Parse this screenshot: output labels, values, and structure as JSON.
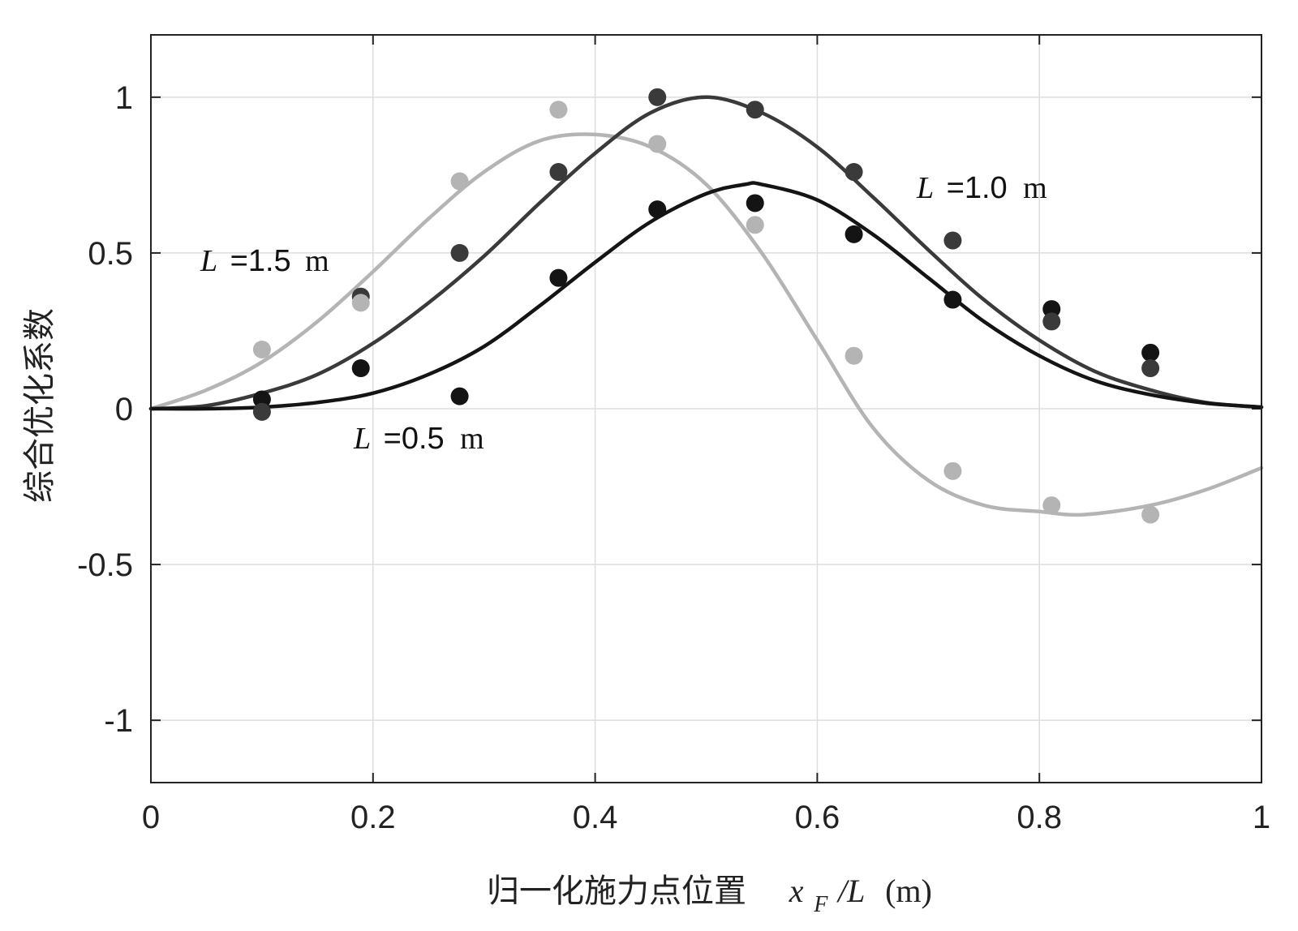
{
  "chart_data": {
    "type": "line",
    "xlabel": "归一化施力点位置",
    "xlabel_math": {
      "x": "x",
      "sub": "F",
      "rest": "/L",
      "unit": "(m)"
    },
    "ylabel": "综合优化系数",
    "xlim": [
      0,
      1
    ],
    "ylim": [
      -1.2,
      1.2
    ],
    "xticks": [
      0,
      0.2,
      0.4,
      0.6,
      0.8,
      1
    ],
    "xtick_labels": [
      "0",
      "0.2",
      "0.4",
      "0.6",
      "0.8",
      "1"
    ],
    "yticks": [
      -1,
      -0.5,
      0,
      0.5,
      1
    ],
    "ytick_labels": [
      "-1",
      "-0.5",
      "0",
      "0.5",
      "1"
    ],
    "grid": true,
    "series": [
      {
        "name": "L =0.5 m",
        "label_parts": {
          "var": "L",
          "value": "=0.5",
          "unit": "m"
        },
        "color": "#141414",
        "curve_x": [
          0,
          0.05,
          0.1,
          0.15,
          0.2,
          0.25,
          0.3,
          0.35,
          0.4,
          0.45,
          0.5,
          0.535,
          0.55,
          0.6,
          0.65,
          0.7,
          0.75,
          0.8,
          0.85,
          0.9,
          0.95,
          1.0
        ],
        "curve_y": [
          0,
          0.0,
          0.005,
          0.02,
          0.05,
          0.11,
          0.2,
          0.33,
          0.47,
          0.6,
          0.69,
          0.72,
          0.72,
          0.67,
          0.56,
          0.42,
          0.28,
          0.17,
          0.09,
          0.045,
          0.018,
          0.005
        ],
        "points_x": [
          0.1,
          0.189,
          0.278,
          0.367,
          0.456,
          0.544,
          0.633,
          0.722,
          0.811,
          0.9
        ],
        "points_y": [
          0.03,
          0.13,
          0.04,
          0.42,
          0.64,
          0.66,
          0.56,
          0.35,
          0.32,
          0.18
        ]
      },
      {
        "name": "L =1.0 m",
        "label_parts": {
          "var": "L",
          "value": "=1.0",
          "unit": "m"
        },
        "color": "#3a3a3a",
        "curve_x": [
          0,
          0.05,
          0.1,
          0.15,
          0.2,
          0.25,
          0.3,
          0.35,
          0.4,
          0.45,
          0.5,
          0.55,
          0.6,
          0.65,
          0.7,
          0.75,
          0.8,
          0.85,
          0.9,
          0.95,
          1.0
        ],
        "curve_y": [
          0,
          0.01,
          0.05,
          0.11,
          0.21,
          0.34,
          0.49,
          0.66,
          0.82,
          0.95,
          1.0,
          0.95,
          0.84,
          0.68,
          0.51,
          0.35,
          0.22,
          0.12,
          0.06,
          0.02,
          0.005
        ],
        "points_x": [
          0.1,
          0.189,
          0.278,
          0.367,
          0.456,
          0.544,
          0.633,
          0.722,
          0.811,
          0.9
        ],
        "points_y": [
          -0.01,
          0.36,
          0.5,
          0.76,
          1.0,
          0.96,
          0.76,
          0.54,
          0.28,
          0.13
        ]
      },
      {
        "name": "L =1.5 m",
        "label_parts": {
          "var": "L",
          "value": "=1.5",
          "unit": "m"
        },
        "color": "#b4b4b4",
        "curve_x": [
          0,
          0.05,
          0.1,
          0.15,
          0.2,
          0.25,
          0.3,
          0.35,
          0.4,
          0.45,
          0.5,
          0.55,
          0.6,
          0.65,
          0.7,
          0.75,
          0.8,
          0.84,
          0.9,
          0.95,
          1.0
        ],
        "curve_y": [
          0,
          0.06,
          0.15,
          0.28,
          0.44,
          0.61,
          0.76,
          0.86,
          0.88,
          0.84,
          0.72,
          0.5,
          0.22,
          -0.06,
          -0.23,
          -0.31,
          -0.33,
          -0.34,
          -0.31,
          -0.26,
          -0.19
        ],
        "points_x": [
          0.1,
          0.189,
          0.278,
          0.367,
          0.456,
          0.544,
          0.633,
          0.722,
          0.811,
          0.9
        ],
        "points_y": [
          0.19,
          0.34,
          0.73,
          0.96,
          0.85,
          0.59,
          0.17,
          -0.2,
          -0.31,
          -0.34
        ]
      }
    ]
  }
}
